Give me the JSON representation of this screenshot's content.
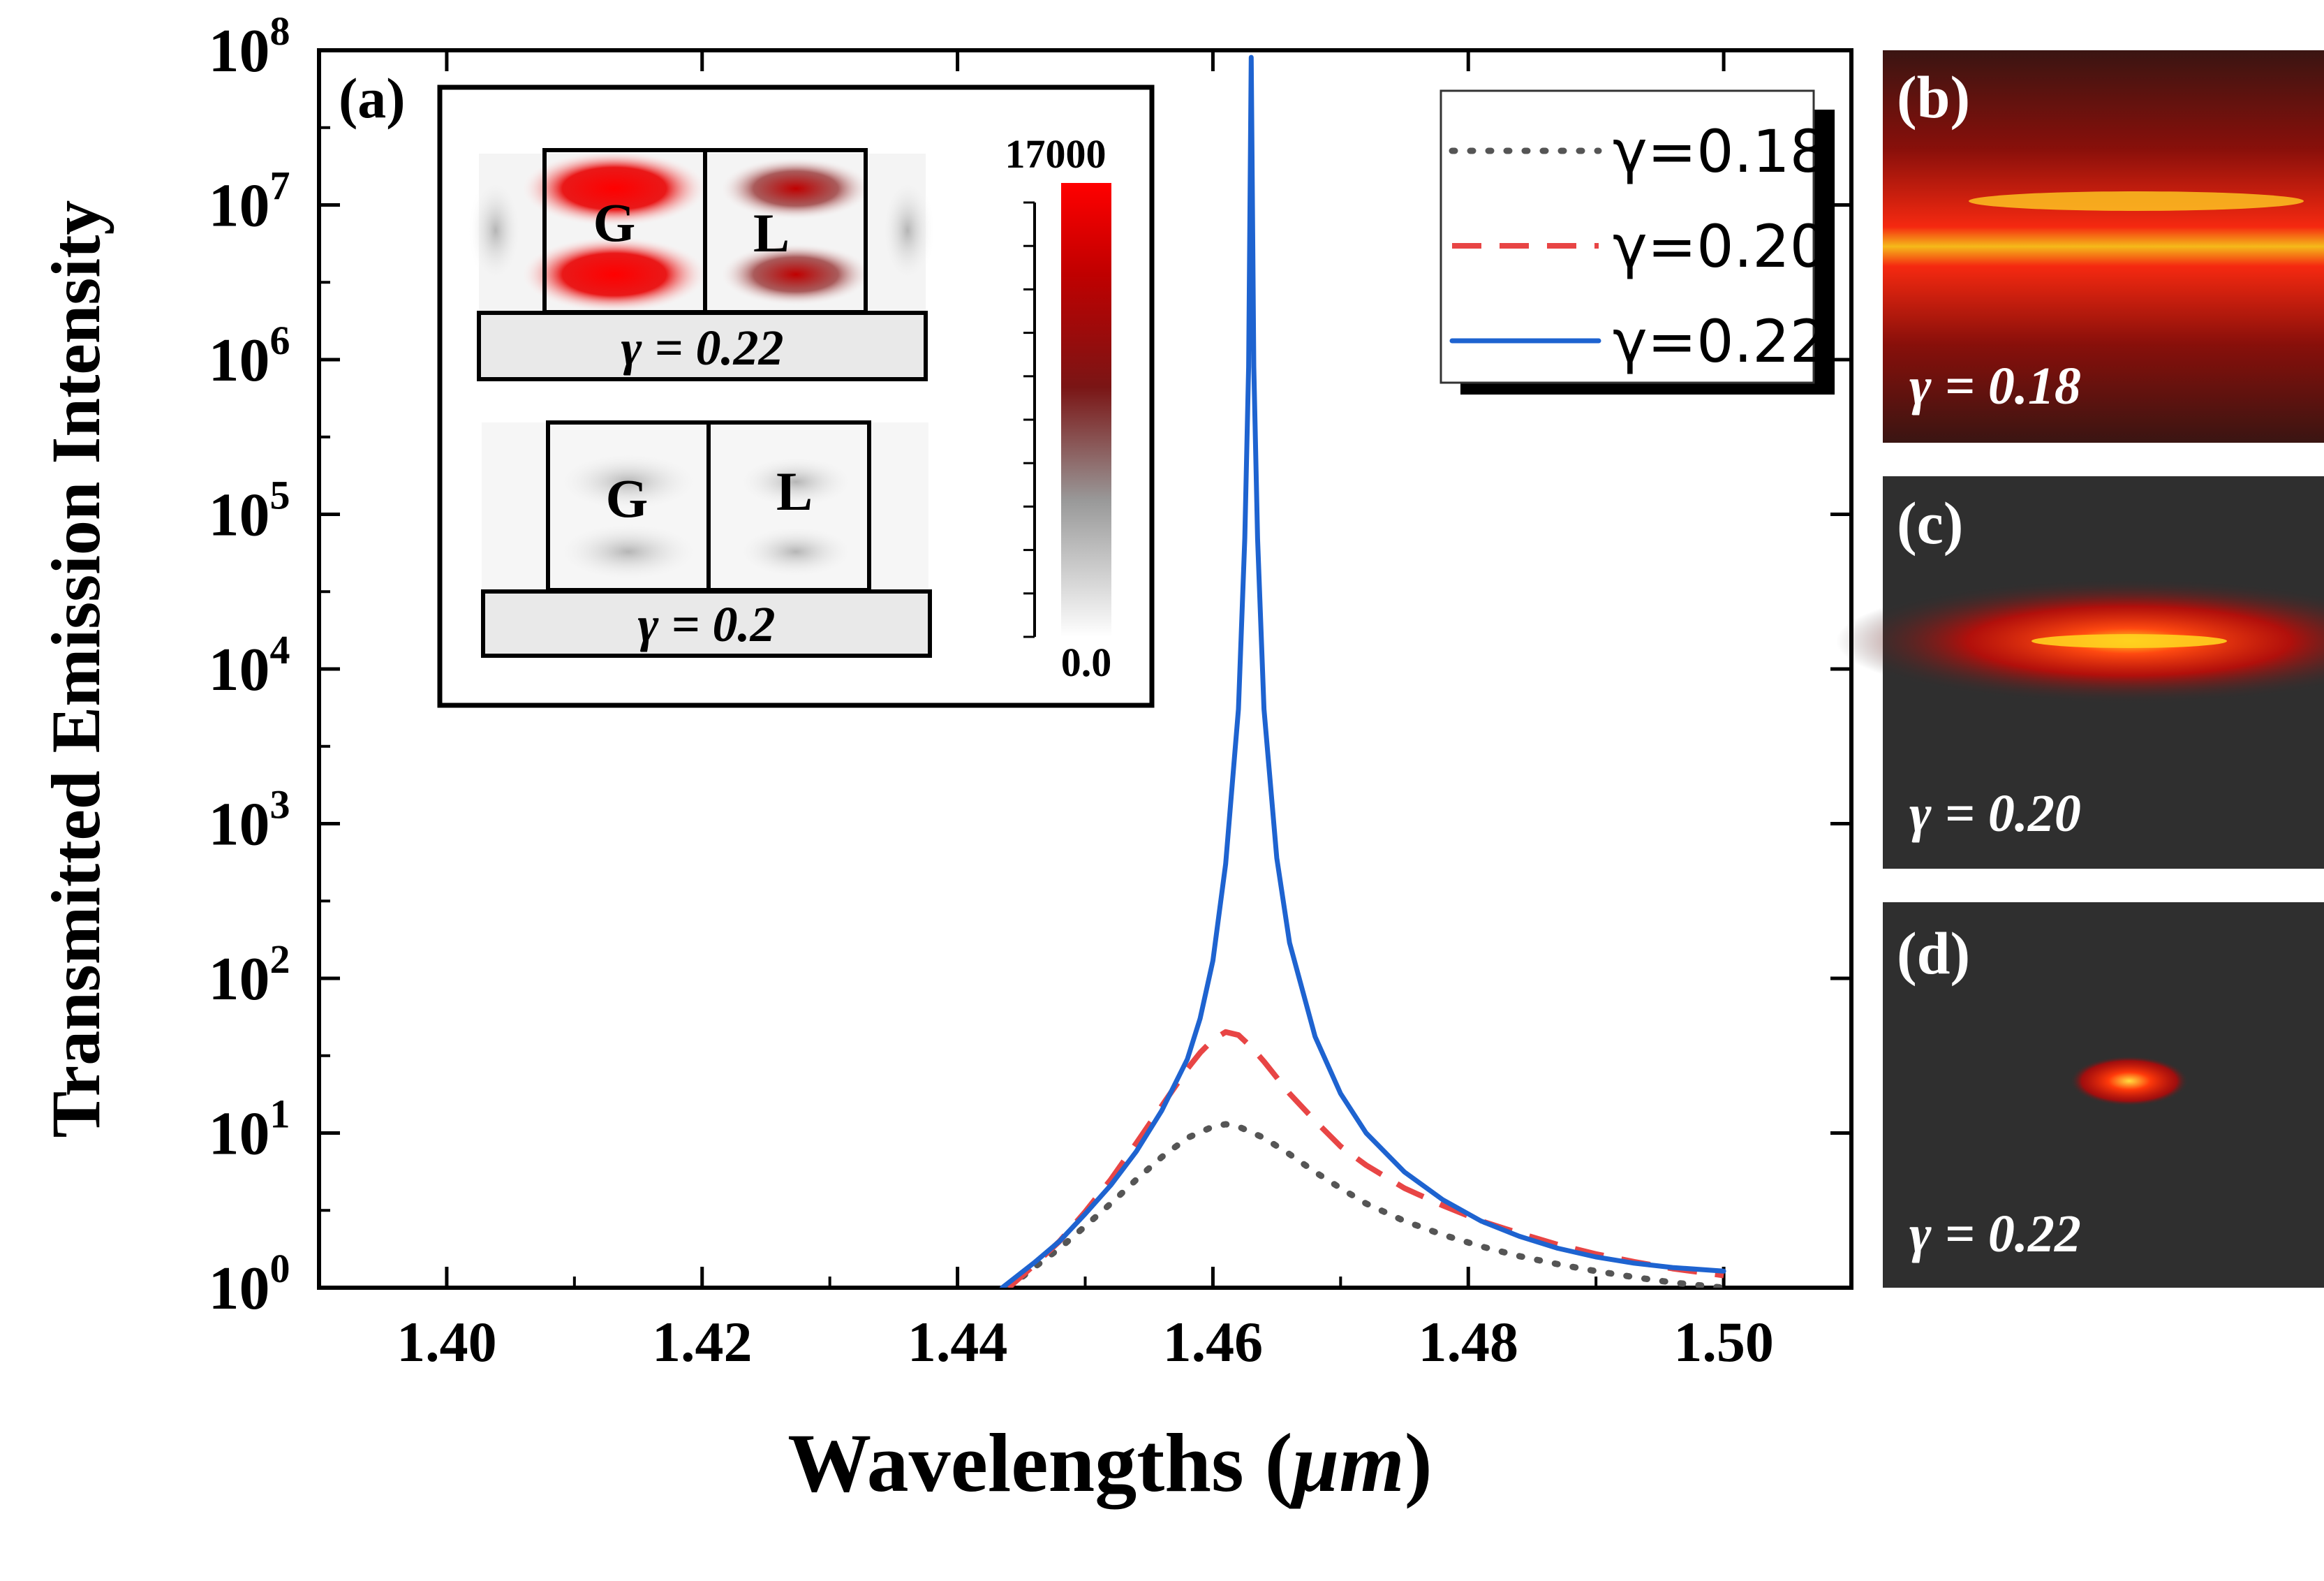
{
  "chart_data": {
    "type": "line",
    "panel_label": "(a)",
    "xlabel": "Wavelengths (",
    "xlabel_unit": "μm",
    "xlabel_close": ")",
    "ylabel": "Transmitted Emission Intensity",
    "xlim": [
      1.39,
      1.51
    ],
    "ylim_log10": [
      0,
      8
    ],
    "y_scale": "log",
    "x_ticks": [
      1.4,
      1.42,
      1.44,
      1.46,
      1.48,
      1.5
    ],
    "x_tick_labels": [
      "1.40",
      "1.42",
      "1.44",
      "1.46",
      "1.48",
      "1.50"
    ],
    "x_minor_ticks": [
      1.41,
      1.43,
      1.45,
      1.47,
      1.49
    ],
    "y_tick_exponents": [
      "0",
      "1",
      "2",
      "3",
      "4",
      "5",
      "6",
      "7",
      "8"
    ],
    "y_tick_base": "10",
    "legend_position": "top-right",
    "series": [
      {
        "name": "γ=0.18",
        "style": "dotted",
        "color": "#555555",
        "x": [
          1.444,
          1.446,
          1.448,
          1.45,
          1.452,
          1.454,
          1.456,
          1.458,
          1.46,
          1.461,
          1.462,
          1.464,
          1.466,
          1.468,
          1.47,
          1.472,
          1.475,
          1.478,
          1.481,
          1.484,
          1.487,
          1.49,
          1.493,
          1.496,
          1.5
        ],
        "y": [
          1.0,
          1.35,
          1.8,
          2.5,
          3.5,
          5.0,
          7.0,
          9.3,
          11.0,
          11.4,
          11.0,
          9.3,
          7.3,
          5.6,
          4.4,
          3.5,
          2.7,
          2.2,
          1.85,
          1.6,
          1.42,
          1.28,
          1.17,
          1.08,
          1.0
        ]
      },
      {
        "name": "γ=0.20",
        "style": "dashed",
        "color": "#e84545",
        "x": [
          1.444,
          1.446,
          1.448,
          1.45,
          1.452,
          1.454,
          1.456,
          1.458,
          1.459,
          1.46,
          1.461,
          1.462,
          1.463,
          1.464,
          1.466,
          1.468,
          1.47,
          1.472,
          1.475,
          1.478,
          1.481,
          1.484,
          1.487,
          1.49,
          1.493,
          1.496,
          1.5
        ],
        "y": [
          1.0,
          1.4,
          2.0,
          3.1,
          5.0,
          8.6,
          15,
          26,
          33,
          40,
          45,
          43,
          36,
          29,
          18,
          12,
          8.2,
          6.2,
          4.4,
          3.4,
          2.7,
          2.25,
          1.9,
          1.65,
          1.47,
          1.33,
          1.2
        ]
      },
      {
        "name": "γ=0.22",
        "style": "solid",
        "color": "#1e63d0",
        "x": [
          1.4435,
          1.446,
          1.448,
          1.45,
          1.452,
          1.454,
          1.456,
          1.458,
          1.459,
          1.46,
          1.461,
          1.462,
          1.4625,
          1.4628,
          1.463,
          1.4632,
          1.4635,
          1.464,
          1.465,
          1.466,
          1.468,
          1.47,
          1.472,
          1.475,
          1.478,
          1.481,
          1.484,
          1.487,
          1.49,
          1.493,
          1.496,
          1.5
        ],
        "y": [
          1.0,
          1.45,
          2.0,
          3.0,
          4.6,
          7.6,
          14,
          30,
          55,
          130,
          550,
          5500,
          70000,
          900000,
          90000000,
          900000,
          70000,
          5500,
          600,
          170,
          42,
          18,
          10,
          5.6,
          3.7,
          2.7,
          2.15,
          1.8,
          1.58,
          1.44,
          1.35,
          1.28
        ]
      }
    ]
  },
  "inset_a": {
    "top_cell_left": "G",
    "top_cell_right": "L",
    "top_label": "γ = 0.22",
    "bottom_cell_left": "G",
    "bottom_cell_right": "L",
    "bottom_label": "γ = 0.2",
    "colorbar_max": "17000",
    "colorbar_min": "0.0"
  },
  "side_panels": [
    {
      "label": "(b)",
      "gamma_text": "γ = 0.18"
    },
    {
      "label": "(c)",
      "gamma_text": "γ = 0.20"
    },
    {
      "label": "(d)",
      "gamma_text": "γ = 0.22"
    }
  ]
}
